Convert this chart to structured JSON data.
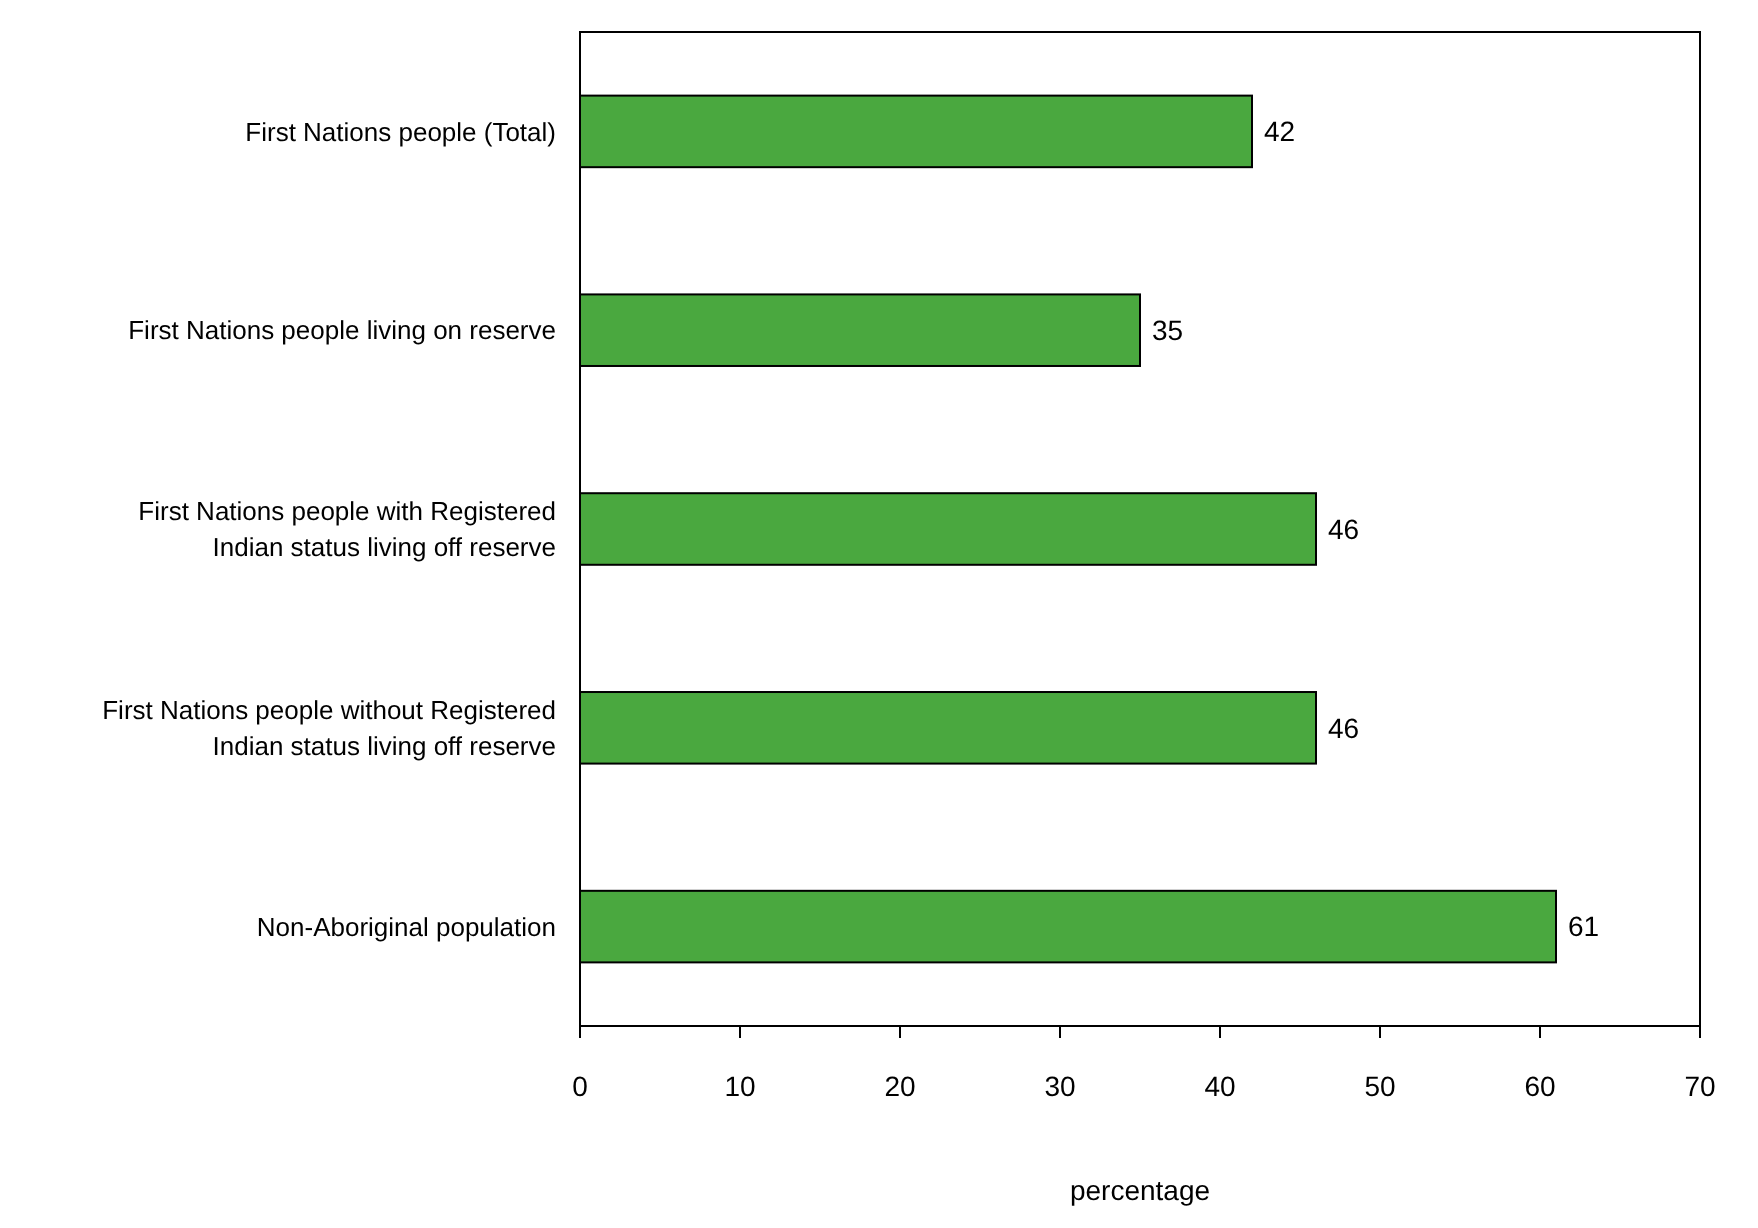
{
  "chart_data": {
    "type": "bar",
    "orientation": "horizontal",
    "xlabel": "percentage",
    "categories": [
      "First Nations people (Total)",
      "First Nations people living on reserve",
      "First Nations people with Registered Indian status living off reserve",
      "First Nations people without Registered Indian status living off reserve",
      "Non-Aboriginal population"
    ],
    "values": [
      42,
      35,
      46,
      46,
      61
    ],
    "color": "#4aa83f",
    "xlim": [
      0,
      70
    ],
    "xticks": [
      0,
      10,
      20,
      30,
      40,
      50,
      60,
      70
    ],
    "data_labels": true
  }
}
